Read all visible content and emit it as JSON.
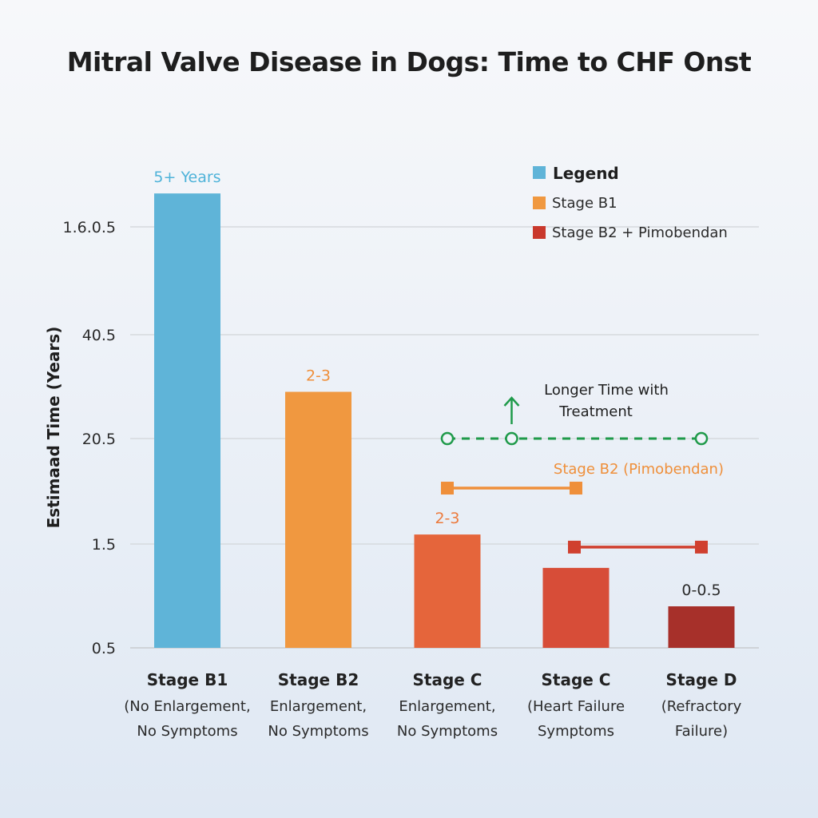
{
  "chart_data": {
    "type": "bar",
    "title": "Mitral Valve Disease in Dogs: Time to CHF Onst",
    "xlabel": "",
    "ylabel": "Estimaad Time (Years)",
    "y_ticks": [
      "0.5",
      "1.5",
      "20.5",
      "40.5",
      "1.6.0.5"
    ],
    "y_scale_note": "tick labels are non-linear; values below are positions in tick-index units (0 = first tick '0.5', 4 = top tick '1.6.0.5')",
    "ylim_tick_index": [
      0,
      4
    ],
    "grid": true,
    "categories": [
      {
        "title": "Stage B1",
        "subtitle": [
          "(No Enlargement,",
          "No Symptoms"
        ]
      },
      {
        "title": "Stage B2",
        "subtitle": [
          "Enlargement,",
          "No Symptoms"
        ]
      },
      {
        "title": "Stage C",
        "subtitle": [
          "Enlargement,",
          "No Symptoms"
        ]
      },
      {
        "title": "Stage C",
        "subtitle": [
          "(Heart Failure",
          "Symptoms"
        ]
      },
      {
        "title": "Stage D",
        "subtitle": [
          "(Refractory",
          "Failure)"
        ]
      }
    ],
    "values": [
      4.31,
      2.45,
      1.09,
      0.77,
      0.4
    ],
    "bar_labels": [
      "5+ Years",
      "2-3",
      "2-3",
      "",
      "0-0.5"
    ],
    "bar_colors": [
      "#5fb4d8",
      "#f09840",
      "#e5653b",
      "#d74d38",
      "#a7302a"
    ],
    "bar_label_colors": [
      "#4fb3d9",
      "#ef8f3a",
      "#ec7a3c",
      "",
      "#2a2a2a"
    ],
    "legend": {
      "placement": "top-right",
      "title": "Legend",
      "title_color": "#5fb4d8",
      "items": [
        {
          "label": "Stage B1",
          "color": "#f09840"
        },
        {
          "label": "Stage B2 + Pimobendan",
          "color": "#c9382c"
        }
      ]
    },
    "annotations": {
      "treatment_text": [
        "Longer Time with",
        "Treatment"
      ],
      "treatment_color": "#1f9a4a",
      "treatment_line": {
        "y_tick_index": 2.0,
        "x_from_category": 2,
        "points_at_categories": [
          2,
          2.5,
          4
        ]
      },
      "pimobendan_label": "Stage B2 (Pimobendan)",
      "pimobendan_color": "#ef8f3a",
      "pimobendan_range": {
        "y_tick_index": 1.53,
        "from_category": 2,
        "to_category": 3
      },
      "red_range": {
        "y_tick_index": 0.97,
        "from_category": 3,
        "to_category": 4,
        "color": "#d0402f"
      }
    }
  }
}
